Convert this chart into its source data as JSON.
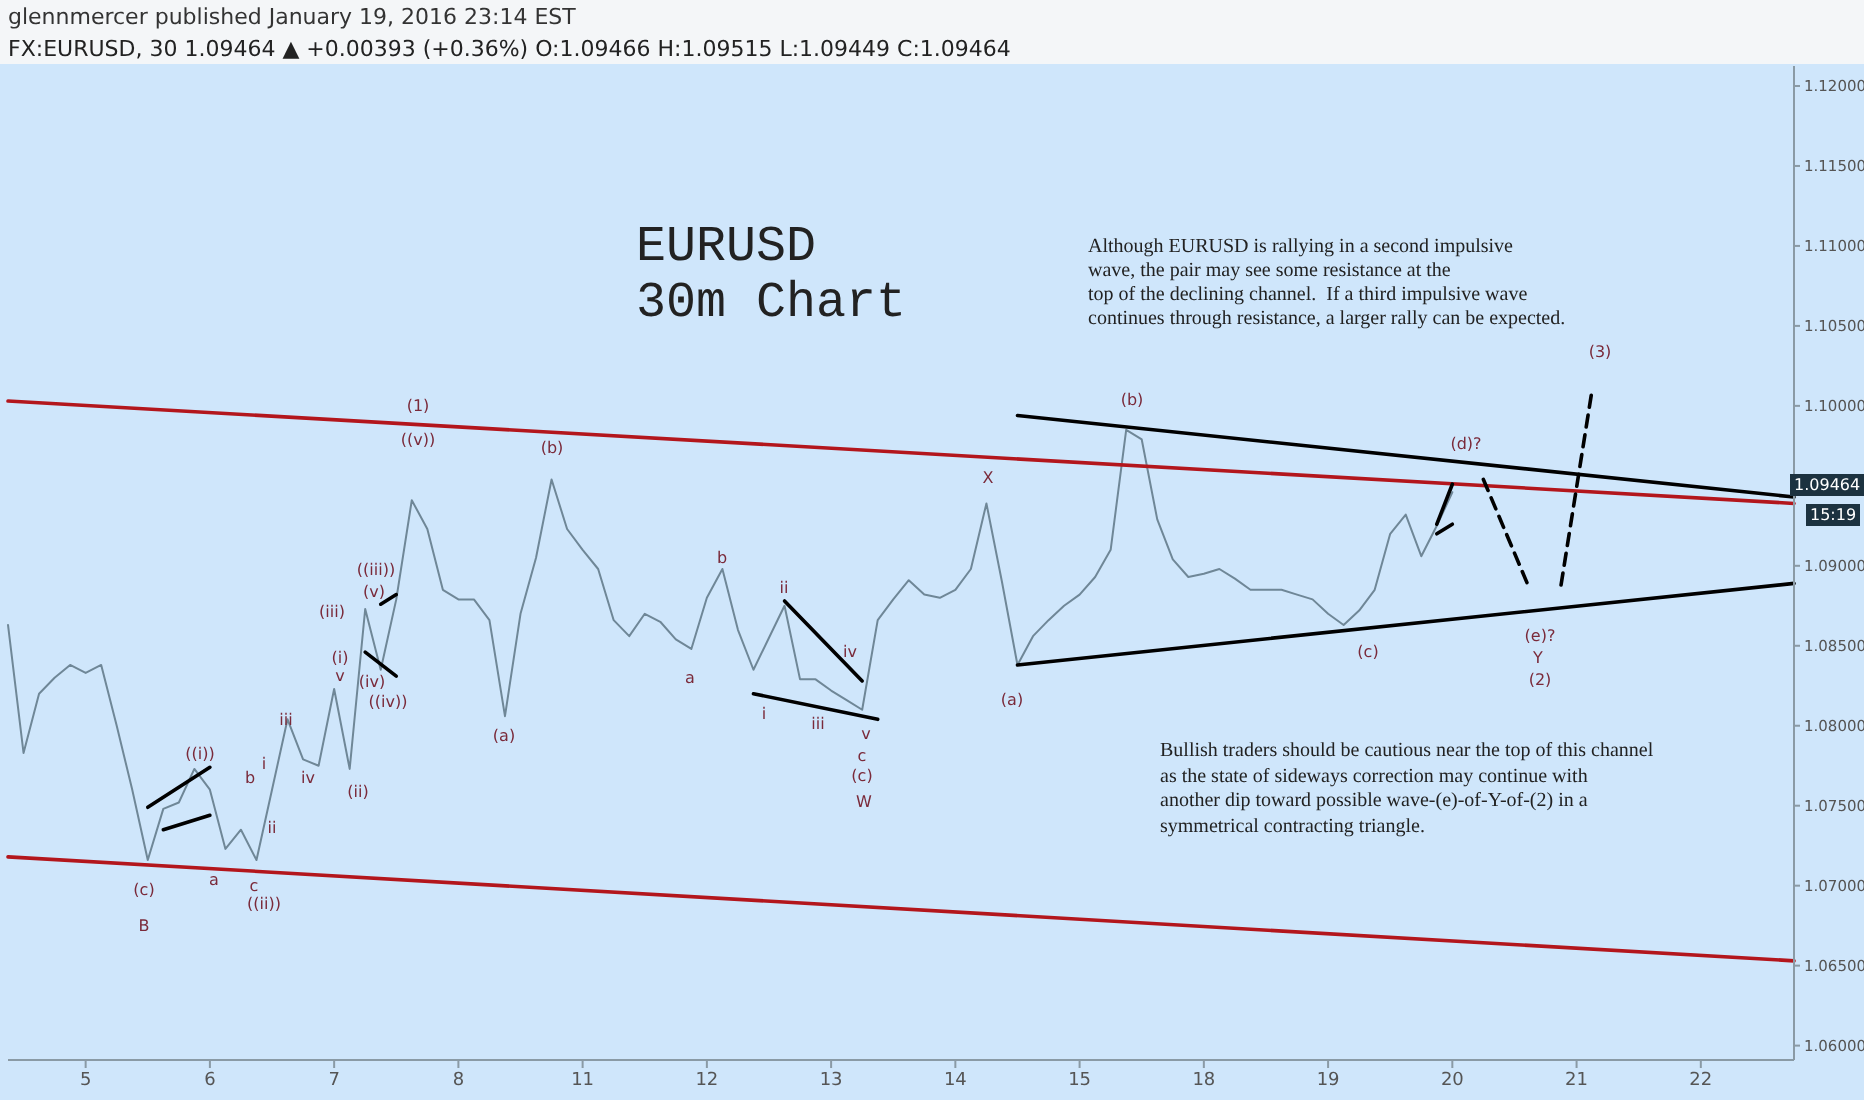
{
  "chart_data": {
    "type": "line",
    "title": "EURUSD 30m Chart",
    "subtitle": "FX:EURUSD, 30  1.09464 ▲ +0.00393 (+0.36%) O:1.09466 H:1.09515 L:1.09449 C:1.09464",
    "categories": [
      null,
      null,
      null,
      null,
      null,
      "5",
      null,
      null,
      null,
      null,
      null,
      null,
      null,
      "6",
      null,
      null,
      null,
      null,
      null,
      null,
      null,
      "7",
      null,
      null,
      null,
      null,
      null,
      null,
      null,
      "8",
      null,
      null,
      null,
      null,
      null,
      null,
      null,
      "11",
      null,
      null,
      null,
      null,
      null,
      null,
      null,
      "12",
      null,
      null,
      null,
      null,
      null,
      null,
      null,
      "13",
      null,
      null,
      null,
      null,
      null,
      null,
      null,
      "14",
      null,
      null,
      null,
      null,
      null,
      null,
      null,
      "15",
      null,
      null,
      null,
      null,
      null,
      null,
      null,
      "18",
      null,
      null,
      null,
      null,
      null,
      null,
      null,
      "19",
      null,
      null,
      null,
      null,
      null,
      null,
      null,
      "20",
      null,
      null,
      null,
      null,
      null,
      null,
      null,
      "21",
      null,
      null,
      null,
      null,
      null,
      null,
      null,
      "22",
      null,
      null,
      null,
      null,
      null,
      null
    ],
    "ylim": [
      1.0591,
      1.12125
    ],
    "yticks": [
      {
        "value": 1.06,
        "label": "1.06000"
      },
      {
        "value": 1.065,
        "label": "1.06500"
      },
      {
        "value": 1.07,
        "label": "1.07000"
      },
      {
        "value": 1.075,
        "label": "1.07500"
      },
      {
        "value": 1.08,
        "label": "1.08000"
      },
      {
        "value": 1.085,
        "label": "1.08500"
      },
      {
        "value": 1.09,
        "label": "1.09000"
      },
      {
        "value": 1.095,
        "label": null
      },
      {
        "value": 1.1,
        "label": "1.10000"
      },
      {
        "value": 1.105,
        "label": "1.10500"
      },
      {
        "value": 1.11,
        "label": "1.11000"
      },
      {
        "value": 1.115,
        "label": "1.11500"
      },
      {
        "value": 1.12,
        "label": "1.12000"
      }
    ],
    "grid": false,
    "series": [
      {
        "color": "#6f8797",
        "values": [
          1.0863,
          1.0783,
          1.082,
          1.083,
          1.0838,
          1.0833,
          1.0838,
          1.08,
          1.076,
          1.0716,
          1.0748,
          1.0752,
          1.0773,
          1.076,
          1.0723,
          1.0735,
          1.0716,
          1.076,
          1.0804,
          1.0779,
          1.0775,
          1.0823,
          1.0773,
          1.0873,
          1.0835,
          1.0879,
          1.0941,
          1.0923,
          1.0885,
          1.0879,
          1.0879,
          1.0866,
          1.0806,
          1.087,
          1.0905,
          1.0954,
          1.0923,
          1.091,
          1.0898,
          1.0866,
          1.0856,
          1.087,
          1.0865,
          1.0854,
          1.0848,
          1.088,
          1.0898,
          1.086,
          1.0835,
          1.0855,
          1.0875,
          1.0829,
          1.0829,
          1.0822,
          1.0816,
          1.081,
          1.0866,
          1.0879,
          1.0891,
          1.0882,
          1.088,
          1.0885,
          1.0898,
          1.0939,
          1.089,
          1.0838,
          1.0856,
          1.0866,
          1.0875,
          1.0882,
          1.0893,
          1.091,
          1.0985,
          1.0979,
          1.0929,
          1.0904,
          1.0893,
          1.0895,
          1.0898,
          1.0892,
          1.0885,
          1.0885,
          1.0885,
          1.0882,
          1.0879,
          1.087,
          1.0863,
          1.0872,
          1.0885,
          1.092,
          1.0932,
          1.0906,
          1.0925,
          1.0946,
          null,
          null,
          null,
          null,
          null,
          null,
          null,
          null,
          null,
          null,
          null,
          null,
          null,
          null,
          null,
          null,
          null,
          null,
          null,
          null,
          null,
          null
        ]
      },
      {
        "color": "#b3161c",
        "values": [
          1.1003,
          null,
          null,
          null,
          null,
          null,
          null,
          null,
          null,
          null,
          null,
          null,
          null,
          null,
          null,
          null,
          null,
          null,
          null,
          null,
          null,
          null,
          null,
          null,
          null,
          null,
          null,
          null,
          null,
          null,
          null,
          null,
          null,
          null,
          null,
          null,
          null,
          null,
          null,
          null,
          null,
          null,
          null,
          null,
          null,
          null,
          null,
          null,
          null,
          null,
          null,
          null,
          null,
          null,
          null,
          null,
          null,
          null,
          null,
          null,
          null,
          null,
          null,
          null,
          null,
          null,
          null,
          null,
          null,
          null,
          null,
          null,
          null,
          null,
          null,
          null,
          null,
          null,
          null,
          null,
          null,
          null,
          null,
          null,
          null,
          null,
          null,
          null,
          null,
          null,
          null,
          null,
          null,
          null,
          null,
          null,
          null,
          null,
          null,
          null,
          null,
          null,
          null,
          null,
          null,
          null,
          null,
          null,
          null,
          null,
          null,
          null,
          null,
          null,
          null,
          1.0939
        ]
      },
      {
        "color": "#b3161c",
        "values": [
          1.0718,
          null,
          null,
          null,
          null,
          null,
          null,
          null,
          null,
          null,
          null,
          null,
          null,
          null,
          null,
          null,
          null,
          null,
          null,
          null,
          null,
          null,
          null,
          null,
          null,
          null,
          null,
          null,
          null,
          null,
          null,
          null,
          null,
          null,
          null,
          null,
          null,
          null,
          null,
          null,
          null,
          null,
          null,
          null,
          null,
          null,
          null,
          null,
          null,
          null,
          null,
          null,
          null,
          null,
          null,
          null,
          null,
          null,
          null,
          null,
          null,
          null,
          null,
          null,
          null,
          null,
          null,
          null,
          null,
          null,
          null,
          null,
          null,
          null,
          null,
          null,
          null,
          null,
          null,
          null,
          null,
          null,
          null,
          null,
          null,
          null,
          null,
          null,
          null,
          null,
          null,
          null,
          null,
          null,
          null,
          null,
          null,
          null,
          null,
          null,
          null,
          null,
          null,
          null,
          null,
          null,
          null,
          null,
          null,
          null,
          null,
          null,
          null,
          null,
          null,
          1.0653
        ]
      },
      {
        "color": "#000000",
        "values": [
          null,
          null,
          null,
          null,
          null,
          null,
          null,
          null,
          null,
          null,
          null,
          null,
          null,
          null,
          null,
          null,
          null,
          null,
          null,
          null,
          null,
          null,
          null,
          null,
          null,
          null,
          null,
          null,
          null,
          null,
          null,
          null,
          null,
          null,
          null,
          null,
          null,
          null,
          null,
          null,
          null,
          null,
          null,
          null,
          null,
          null,
          null,
          null,
          null,
          null,
          null,
          null,
          null,
          null,
          null,
          null,
          null,
          null,
          null,
          null,
          null,
          null,
          null,
          null,
          null,
          1.0994,
          null,
          null,
          null,
          null,
          null,
          null,
          null,
          null,
          null,
          null,
          null,
          null,
          null,
          null,
          null,
          null,
          null,
          null,
          null,
          null,
          null,
          null,
          null,
          null,
          null,
          null,
          null,
          null,
          null,
          null,
          null,
          null,
          null,
          null,
          null,
          null,
          null,
          null,
          null,
          null,
          null,
          null,
          null,
          null,
          null,
          null,
          null,
          null,
          null,
          1.0943
        ]
      },
      {
        "color": "#000000",
        "values": [
          null,
          null,
          null,
          null,
          null,
          null,
          null,
          null,
          null,
          null,
          null,
          null,
          null,
          null,
          null,
          null,
          null,
          null,
          null,
          null,
          null,
          null,
          null,
          null,
          null,
          null,
          null,
          null,
          null,
          null,
          null,
          null,
          null,
          null,
          null,
          null,
          null,
          null,
          null,
          null,
          null,
          null,
          null,
          null,
          null,
          null,
          null,
          null,
          null,
          null,
          null,
          null,
          null,
          null,
          null,
          null,
          null,
          null,
          null,
          null,
          null,
          null,
          null,
          null,
          null,
          1.0838,
          null,
          null,
          null,
          null,
          null,
          null,
          null,
          null,
          null,
          null,
          null,
          null,
          null,
          null,
          null,
          null,
          null,
          null,
          null,
          null,
          null,
          null,
          null,
          null,
          null,
          null,
          null,
          null,
          null,
          null,
          null,
          null,
          null,
          null,
          null,
          null,
          null,
          null,
          null,
          null,
          null,
          null,
          null,
          null,
          null,
          null,
          null,
          null,
          null,
          1.0889
        ]
      },
      {
        "color": "#000000",
        "line_style": "dashed",
        "values": [
          null,
          null,
          null,
          null,
          null,
          null,
          null,
          null,
          null,
          null,
          null,
          null,
          null,
          null,
          null,
          null,
          null,
          null,
          null,
          null,
          null,
          null,
          null,
          null,
          null,
          null,
          null,
          null,
          null,
          null,
          null,
          null,
          null,
          null,
          null,
          null,
          null,
          null,
          null,
          null,
          null,
          null,
          null,
          null,
          null,
          null,
          null,
          null,
          null,
          null,
          null,
          null,
          null,
          null,
          null,
          null,
          null,
          null,
          null,
          null,
          null,
          null,
          null,
          null,
          null,
          null,
          null,
          null,
          null,
          null,
          null,
          null,
          null,
          null,
          null,
          null,
          null,
          null,
          null,
          null,
          null,
          null,
          null,
          null,
          null,
          null,
          null,
          null,
          null,
          null,
          null,
          null,
          null,
          null,
          null,
          1.0954,
          null,
          null,
          1.0885,
          null,
          null,
          null,
          null,
          null,
          null,
          null,
          null,
          null,
          null,
          null,
          null,
          null,
          null,
          null,
          null,
          null
        ]
      },
      {
        "color": "#000000",
        "line_style": "dashed",
        "values": [
          null,
          null,
          null,
          null,
          null,
          null,
          null,
          null,
          null,
          null,
          null,
          null,
          null,
          null,
          null,
          null,
          null,
          null,
          null,
          null,
          null,
          null,
          null,
          null,
          null,
          null,
          null,
          null,
          null,
          null,
          null,
          null,
          null,
          null,
          null,
          null,
          null,
          null,
          null,
          null,
          null,
          null,
          null,
          null,
          null,
          null,
          null,
          null,
          null,
          null,
          null,
          null,
          null,
          null,
          null,
          null,
          null,
          null,
          null,
          null,
          null,
          null,
          null,
          null,
          null,
          null,
          null,
          null,
          null,
          null,
          null,
          null,
          null,
          null,
          null,
          null,
          null,
          null,
          null,
          null,
          null,
          null,
          null,
          null,
          null,
          null,
          null,
          null,
          null,
          null,
          null,
          null,
          null,
          null,
          null,
          null,
          null,
          null,
          null,
          null,
          1.0888,
          null,
          1.101,
          null,
          null,
          null,
          null,
          null,
          null,
          null,
          null,
          null,
          null,
          null,
          null,
          null
        ]
      },
      {
        "color": "#000000",
        "values": [
          null,
          null,
          null,
          null,
          null,
          null,
          null,
          null,
          null,
          1.0749,
          null,
          null,
          null,
          1.0774,
          null,
          null,
          null,
          null,
          null,
          null,
          null,
          null,
          null,
          null,
          null,
          null,
          null,
          null,
          null,
          null,
          null,
          null,
          null,
          null,
          null,
          null,
          null,
          null,
          null,
          null,
          null,
          null,
          null,
          null,
          null,
          null,
          null,
          null,
          null,
          null,
          null,
          null,
          null,
          null,
          null,
          null,
          null,
          null,
          null,
          null,
          null,
          null,
          null,
          null,
          null,
          null,
          null,
          null,
          null,
          null,
          null,
          null,
          null,
          null,
          null,
          null,
          null,
          null,
          null,
          null,
          null,
          null,
          null,
          null,
          null,
          null,
          null,
          null,
          null,
          null,
          null,
          null,
          null,
          null,
          null,
          null,
          null,
          null,
          null,
          null,
          null,
          null,
          null,
          null,
          null,
          null,
          null,
          null,
          null,
          null,
          null,
          null,
          null,
          null,
          null,
          null
        ]
      },
      {
        "color": "#000000",
        "values": [
          null,
          null,
          null,
          null,
          null,
          null,
          null,
          null,
          null,
          null,
          1.0735,
          null,
          null,
          1.0744,
          null,
          null,
          null,
          null,
          null,
          null,
          null,
          null,
          null,
          null,
          null,
          null,
          null,
          null,
          null,
          null,
          null,
          null,
          null,
          null,
          null,
          null,
          null,
          null,
          null,
          null,
          null,
          null,
          null,
          null,
          null,
          null,
          null,
          null,
          null,
          null,
          null,
          null,
          null,
          null,
          null,
          null,
          null,
          null,
          null,
          null,
          null,
          null,
          null,
          null,
          null,
          null,
          null,
          null,
          null,
          null,
          null,
          null,
          null,
          null,
          null,
          null,
          null,
          null,
          null,
          null,
          null,
          null,
          null,
          null,
          null,
          null,
          null,
          null,
          null,
          null,
          null,
          null,
          null,
          null,
          null,
          null,
          null,
          null,
          null,
          null,
          null,
          null,
          null,
          null,
          null,
          null,
          null,
          null,
          null,
          null,
          null,
          null,
          null,
          null,
          null,
          null
        ]
      },
      {
        "color": "#000000",
        "values": [
          null,
          null,
          null,
          null,
          null,
          null,
          null,
          null,
          null,
          null,
          null,
          null,
          null,
          null,
          null,
          null,
          null,
          null,
          null,
          null,
          null,
          null,
          null,
          null,
          1.0876,
          1.0882,
          null,
          null,
          null,
          null,
          null,
          null,
          null,
          null,
          null,
          null,
          null,
          null,
          null,
          null,
          null,
          null,
          null,
          null,
          null,
          null,
          null,
          null,
          null,
          null,
          null,
          null,
          null,
          null,
          null,
          null,
          null,
          null,
          null,
          null,
          null,
          null,
          null,
          null,
          null,
          null,
          null,
          null,
          null,
          null,
          null,
          null,
          null,
          null,
          null,
          null,
          null,
          null,
          null,
          null,
          null,
          null,
          null,
          null,
          null,
          null,
          null,
          null,
          null,
          null,
          null,
          null,
          null,
          null,
          null,
          null,
          null,
          null,
          null,
          null,
          null,
          null,
          null,
          null,
          null,
          null,
          null,
          null,
          null,
          null,
          null,
          null,
          null,
          null,
          null,
          null
        ]
      },
      {
        "color": "#000000",
        "values": [
          null,
          null,
          null,
          null,
          null,
          null,
          null,
          null,
          null,
          null,
          null,
          null,
          null,
          null,
          null,
          null,
          null,
          null,
          null,
          null,
          null,
          null,
          null,
          1.0846,
          null,
          1.0831,
          null,
          null,
          null,
          null,
          null,
          null,
          null,
          null,
          null,
          null,
          null,
          null,
          null,
          null,
          null,
          null,
          null,
          null,
          null,
          null,
          null,
          null,
          null,
          null,
          null,
          null,
          null,
          null,
          null,
          null,
          null,
          null,
          null,
          null,
          null,
          null,
          null,
          null,
          null,
          null,
          null,
          null,
          null,
          null,
          null,
          null,
          null,
          null,
          null,
          null,
          null,
          null,
          null,
          null,
          null,
          null,
          null,
          null,
          null,
          null,
          null,
          null,
          null,
          null,
          null,
          null,
          null,
          null,
          null,
          null,
          null,
          null,
          null,
          null,
          null,
          null,
          null,
          null,
          null,
          null,
          null,
          null,
          null,
          null,
          null,
          null,
          null,
          null,
          null,
          null
        ]
      },
      {
        "color": "#000000",
        "values": [
          null,
          null,
          null,
          null,
          null,
          null,
          null,
          null,
          null,
          null,
          null,
          null,
          null,
          null,
          null,
          null,
          null,
          null,
          null,
          null,
          null,
          null,
          null,
          null,
          null,
          null,
          null,
          null,
          null,
          null,
          null,
          null,
          null,
          null,
          null,
          null,
          null,
          null,
          null,
          null,
          null,
          null,
          null,
          null,
          null,
          null,
          null,
          null,
          null,
          null,
          1.0878,
          null,
          null,
          null,
          null,
          1.0828,
          null,
          null,
          null,
          null,
          null,
          null,
          null,
          null,
          null,
          null,
          null,
          null,
          null,
          null,
          null,
          null,
          null,
          null,
          null,
          null,
          null,
          null,
          null,
          null,
          null,
          null,
          null,
          null,
          null,
          null,
          null,
          null,
          null,
          null,
          null,
          null,
          null,
          null,
          null,
          null,
          null,
          null,
          null,
          null,
          null,
          null,
          null,
          null,
          null,
          null,
          null,
          null,
          null,
          null,
          null,
          null,
          null,
          null,
          null,
          null
        ]
      },
      {
        "color": "#000000",
        "values": [
          null,
          null,
          null,
          null,
          null,
          null,
          null,
          null,
          null,
          null,
          null,
          null,
          null,
          null,
          null,
          null,
          null,
          null,
          null,
          null,
          null,
          null,
          null,
          null,
          null,
          null,
          null,
          null,
          null,
          null,
          null,
          null,
          null,
          null,
          null,
          null,
          null,
          null,
          null,
          null,
          null,
          null,
          null,
          null,
          null,
          null,
          null,
          null,
          1.082,
          null,
          null,
          null,
          null,
          null,
          null,
          null,
          1.0804,
          null,
          null,
          null,
          null,
          null,
          null,
          null,
          null,
          null,
          null,
          null,
          null,
          null,
          null,
          null,
          null,
          null,
          null,
          null,
          null,
          null,
          null,
          null,
          null,
          null,
          null,
          null,
          null,
          null,
          null,
          null,
          null,
          null,
          null,
          null,
          null,
          null,
          null,
          null,
          null,
          null,
          null,
          null,
          null,
          null,
          null,
          null,
          null,
          null,
          null,
          null,
          null,
          null,
          null,
          null,
          null,
          null,
          null,
          null
        ]
      },
      {
        "color": "#000000",
        "values": [
          null,
          null,
          null,
          null,
          null,
          null,
          null,
          null,
          null,
          null,
          null,
          null,
          null,
          null,
          null,
          null,
          null,
          null,
          null,
          null,
          null,
          null,
          null,
          null,
          null,
          null,
          null,
          null,
          null,
          null,
          null,
          null,
          null,
          null,
          null,
          null,
          null,
          null,
          null,
          null,
          null,
          null,
          null,
          null,
          null,
          null,
          null,
          null,
          null,
          null,
          null,
          null,
          null,
          null,
          null,
          null,
          null,
          null,
          null,
          null,
          null,
          null,
          null,
          null,
          null,
          null,
          null,
          null,
          null,
          null,
          null,
          null,
          null,
          null,
          null,
          null,
          null,
          null,
          null,
          null,
          null,
          null,
          null,
          null,
          null,
          null,
          null,
          null,
          null,
          null,
          null,
          null,
          1.0926,
          1.0951,
          null,
          null,
          null,
          null,
          null,
          null,
          null,
          null,
          null,
          null,
          null,
          null,
          null,
          null,
          null,
          null,
          null,
          null,
          null,
          null,
          null,
          null
        ]
      },
      {
        "color": "#000000",
        "values": [
          null,
          null,
          null,
          null,
          null,
          null,
          null,
          null,
          null,
          null,
          null,
          null,
          null,
          null,
          null,
          null,
          null,
          null,
          null,
          null,
          null,
          null,
          null,
          null,
          null,
          null,
          null,
          null,
          null,
          null,
          null,
          null,
          null,
          null,
          null,
          null,
          null,
          null,
          null,
          null,
          null,
          null,
          null,
          null,
          null,
          null,
          null,
          null,
          null,
          null,
          null,
          null,
          null,
          null,
          null,
          null,
          null,
          null,
          null,
          null,
          null,
          null,
          null,
          null,
          null,
          null,
          null,
          null,
          null,
          null,
          null,
          null,
          null,
          null,
          null,
          null,
          null,
          null,
          null,
          null,
          null,
          null,
          null,
          null,
          null,
          null,
          null,
          null,
          null,
          null,
          null,
          null,
          1.092,
          1.0926,
          null,
          null,
          null,
          null,
          null,
          null,
          null,
          null,
          null,
          null,
          null,
          null,
          null,
          null,
          null,
          null,
          null,
          null,
          null,
          null,
          null,
          null
        ]
      }
    ],
    "annotations": [
      "glennmercer published January 19, 2016 23:14 EST",
      "Although EURUSD is rallying in a second impulsive\nwave, the pair may see some resistance at the\ntop of the declining channel.  If a third impulsive wave\ncontinues through resistance, a larger rally can be expected.",
      "Bullish traders should be cautious near the top of this channel\nas the state of sideways correction may continue with\nanother dip toward possible wave-(e)-of-Y-of-(2) in a\nsymmetrical contracting triangle.",
      "15:19",
      "1.09464",
      "(1)",
      "((v))",
      "(b)",
      "b",
      "X",
      "(b)",
      "(d)?",
      "(3)",
      "(a)",
      "a",
      "ii",
      "iv",
      "i",
      "iii",
      "v",
      "c",
      "(c)",
      "W",
      "(a)",
      "(c)",
      "(e)?",
      "Y",
      "(2)",
      "((i))",
      "b",
      "i",
      "iii",
      "iv",
      "ii",
      "v",
      "(i)",
      "(iii)",
      "((iii))",
      "(v)",
      "(iv)",
      "((iv))",
      "(ii)",
      "a",
      "c",
      "((ii))",
      "(c)",
      "B"
    ]
  }
}
